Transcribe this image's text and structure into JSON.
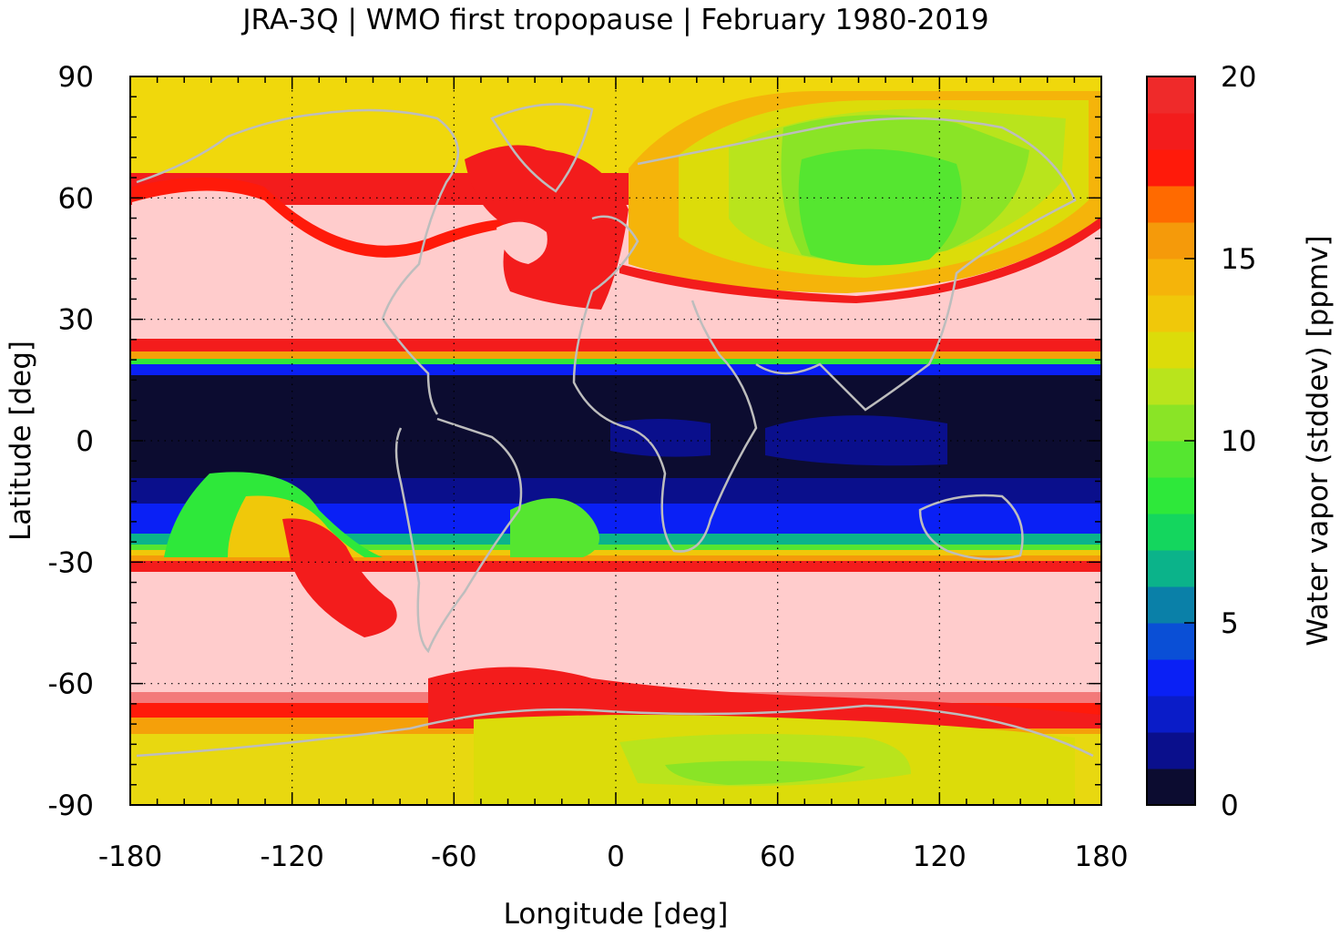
{
  "chart_data": {
    "type": "heatmap",
    "title": "JRA-3Q | WMO first tropopause | February 1980-2019",
    "xlabel": "Longitude [deg]",
    "ylabel": "Latitude [deg]",
    "xlim": [
      -180,
      180
    ],
    "ylim": [
      -90,
      90
    ],
    "x_ticks": [
      -180,
      -120,
      -60,
      0,
      60,
      120,
      180
    ],
    "y_ticks": [
      90,
      60,
      30,
      0,
      -30,
      -60,
      -90
    ],
    "grid": true,
    "colorbar": {
      "label": "Water vapor (stddev) [ppmv]",
      "range": [
        0,
        20
      ],
      "ticks": [
        0,
        5,
        10,
        15,
        20
      ],
      "levels": 20,
      "colors": [
        "#0c0c30",
        "#0a0f8c",
        "#0a1cc8",
        "#0a20f5",
        "#0a4fd6",
        "#0a80a8",
        "#0bb38a",
        "#14d65e",
        "#2ee83a",
        "#55e630",
        "#8ae426",
        "#b9e41c",
        "#dcdc0a",
        "#f0c80a",
        "#f5b40a",
        "#f59a0a",
        "#ff6a00",
        "#ff1a0a",
        "#f31c1c",
        "#ef2a2a",
        "#ef3232",
        "#f37a7a",
        "#ffcccc"
      ]
    },
    "zonal_profile": [
      {
        "lat": 90,
        "value": 11.5
      },
      {
        "lat": 70,
        "value": 12.0
      },
      {
        "lat": 62,
        "value": 16.0
      },
      {
        "lat": 55,
        "value": 20.0
      },
      {
        "lat": 30,
        "value": 20.0
      },
      {
        "lat": 22,
        "value": 16.0
      },
      {
        "lat": 18,
        "value": 6.0
      },
      {
        "lat": 12,
        "value": 0.8
      },
      {
        "lat": 0,
        "value": 0.8
      },
      {
        "lat": -12,
        "value": 1.0
      },
      {
        "lat": -20,
        "value": 3.0
      },
      {
        "lat": -27,
        "value": 9.0
      },
      {
        "lat": -31,
        "value": 15.0
      },
      {
        "lat": -35,
        "value": 20.0
      },
      {
        "lat": -62,
        "value": 20.0
      },
      {
        "lat": -70,
        "value": 16.0
      },
      {
        "lat": -80,
        "value": 12.0
      },
      {
        "lat": -90,
        "value": 11.0
      }
    ]
  }
}
